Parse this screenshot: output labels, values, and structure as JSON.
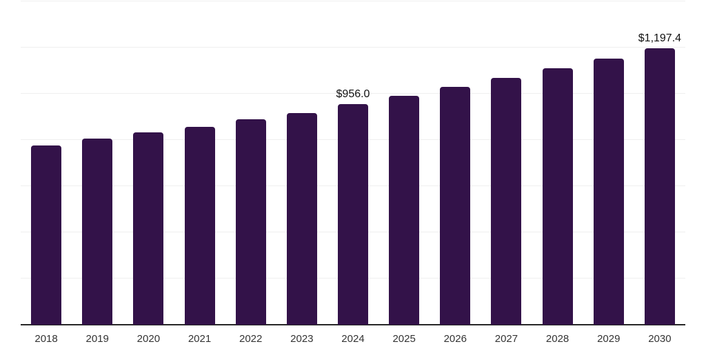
{
  "chart_data": {
    "type": "bar",
    "title": "",
    "xlabel": "",
    "ylabel": "",
    "categories": [
      "2018",
      "2019",
      "2020",
      "2021",
      "2022",
      "2023",
      "2024",
      "2025",
      "2026",
      "2027",
      "2028",
      "2029",
      "2030"
    ],
    "values": [
      775,
      805,
      834,
      858,
      890,
      917,
      956.0,
      992,
      1030,
      1070,
      1110,
      1153,
      1197.4
    ],
    "point_labels": [
      "",
      "",
      "",
      "",
      "",
      "",
      "$956.0",
      "",
      "",
      "",
      "",
      "",
      "$1,197.4"
    ],
    "ylim": [
      0,
      1400
    ],
    "gridline_step": 200,
    "grid": true,
    "legend_position": "none",
    "y_axis_tick_labels_visible": false,
    "bar_corner_radius_px": 4
  },
  "colors": {
    "bar": "#331249",
    "axis": "#262626",
    "gridline": "#efefef",
    "tick_label": "#333333",
    "data_label": "#111111",
    "background": "#ffffff"
  }
}
